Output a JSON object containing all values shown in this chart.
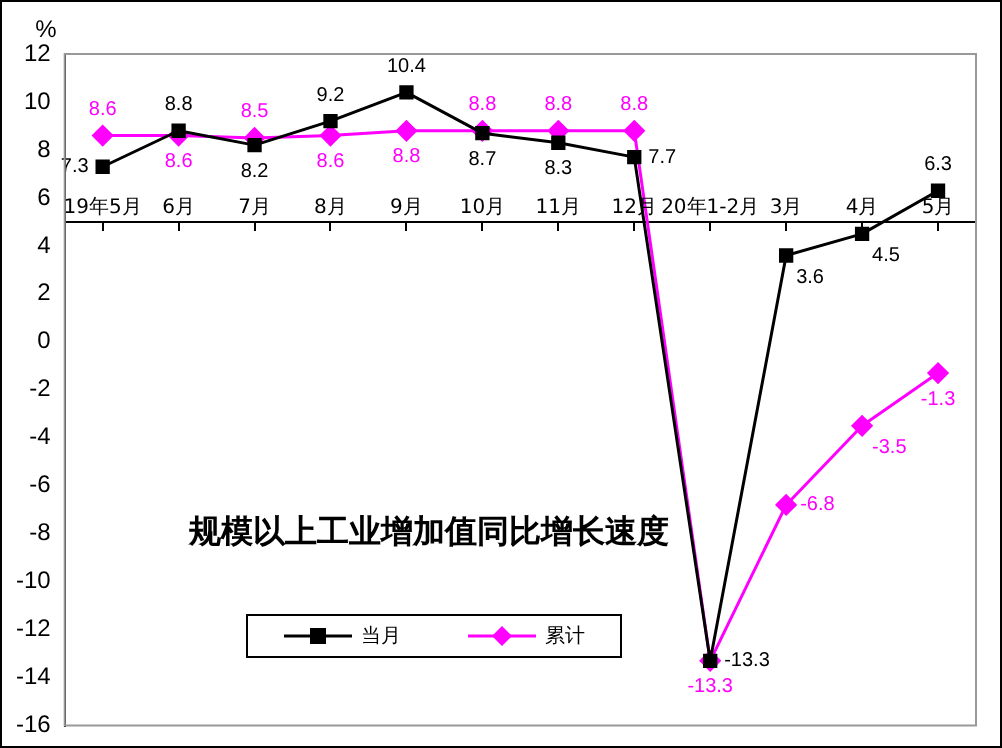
{
  "chart_data": {
    "type": "line",
    "title": "规模以上工业增加值同比增长速度",
    "ylabel": "%",
    "categories": [
      "19年5月",
      "6月",
      "7月",
      "8月",
      "9月",
      "10月",
      "11月",
      "12月",
      "20年1-2月",
      "3月",
      "4月",
      "5月"
    ],
    "series": [
      {
        "name": "当月",
        "color": "#000000",
        "marker": "square",
        "values": [
          7.3,
          8.8,
          8.2,
          9.2,
          10.4,
          8.7,
          8.3,
          7.7,
          -13.3,
          3.6,
          4.5,
          6.3
        ]
      },
      {
        "name": "累计",
        "color": "#ff00ff",
        "marker": "diamond",
        "values": [
          8.6,
          8.6,
          8.5,
          8.6,
          8.8,
          8.8,
          8.8,
          8.8,
          -13.3,
          -6.8,
          -3.5,
          -1.3
        ]
      }
    ],
    "ylim": [
      -16,
      12
    ],
    "yticks": [
      -16,
      -14,
      -12,
      -10,
      -8,
      -6,
      -4,
      -2,
      0,
      2,
      4,
      6,
      8,
      10,
      12
    ],
    "grid": false,
    "legend": "bottom",
    "data_labels": true,
    "line_style": "solid"
  }
}
